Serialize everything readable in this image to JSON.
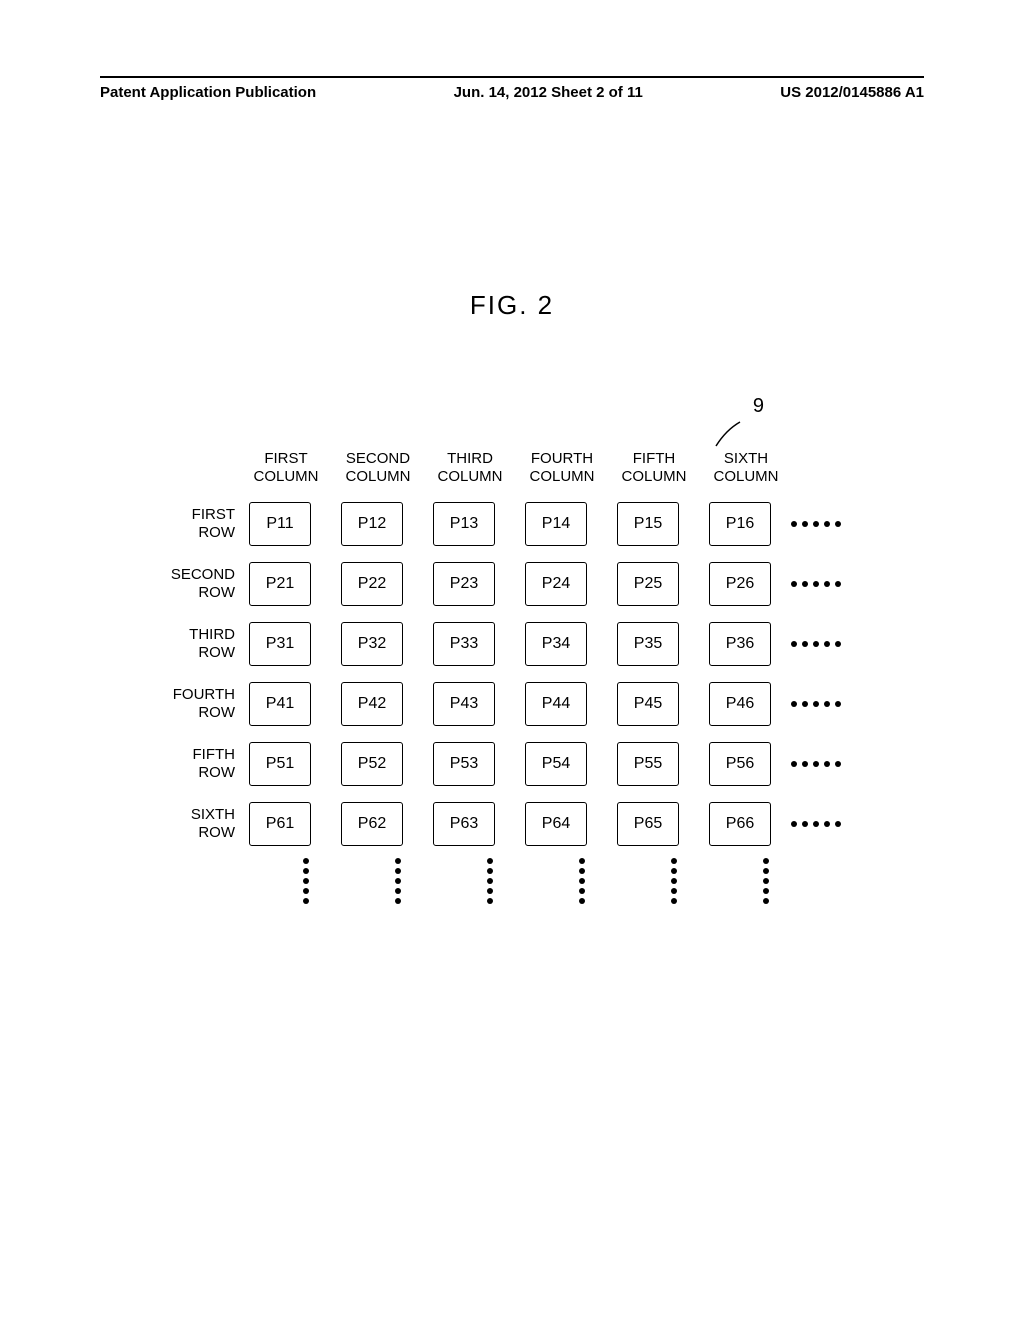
{
  "header": {
    "left": "Patent Application Publication",
    "center": "Jun. 14, 2012  Sheet 2 of 11",
    "right": "US 2012/0145886 A1"
  },
  "figure": {
    "title": "FIG. 2",
    "ref_num": "9",
    "column_headers": [
      {
        "line1": "FIRST",
        "line2": "COLUMN"
      },
      {
        "line1": "SECOND",
        "line2": "COLUMN"
      },
      {
        "line1": "THIRD",
        "line2": "COLUMN"
      },
      {
        "line1": "FOURTH",
        "line2": "COLUMN"
      },
      {
        "line1": "FIFTH",
        "line2": "COLUMN"
      },
      {
        "line1": "SIXTH",
        "line2": "COLUMN"
      }
    ],
    "rows": [
      {
        "label_line1": "FIRST",
        "label_line2": "ROW",
        "cells": [
          "P11",
          "P12",
          "P13",
          "P14",
          "P15",
          "P16"
        ]
      },
      {
        "label_line1": "SECOND",
        "label_line2": "ROW",
        "cells": [
          "P21",
          "P22",
          "P23",
          "P24",
          "P25",
          "P26"
        ]
      },
      {
        "label_line1": "THIRD",
        "label_line2": "ROW",
        "cells": [
          "P31",
          "P32",
          "P33",
          "P34",
          "P35",
          "P36"
        ]
      },
      {
        "label_line1": "FOURTH",
        "label_line2": "ROW",
        "cells": [
          "P41",
          "P42",
          "P43",
          "P44",
          "P45",
          "P46"
        ]
      },
      {
        "label_line1": "FIFTH",
        "label_line2": "ROW",
        "cells": [
          "P51",
          "P52",
          "P53",
          "P54",
          "P55",
          "P56"
        ]
      },
      {
        "label_line1": "SIXTH",
        "label_line2": "ROW",
        "cells": [
          "P61",
          "P62",
          "P63",
          "P64",
          "P65",
          "P66"
        ]
      }
    ],
    "h_dot_count": 5,
    "v_dot_count": 5,
    "style": {
      "cell_border_color": "#000000",
      "cell_bg": "#ffffff",
      "dot_color": "#000000",
      "font_color": "#000000",
      "page_bg": "#ffffff"
    }
  }
}
